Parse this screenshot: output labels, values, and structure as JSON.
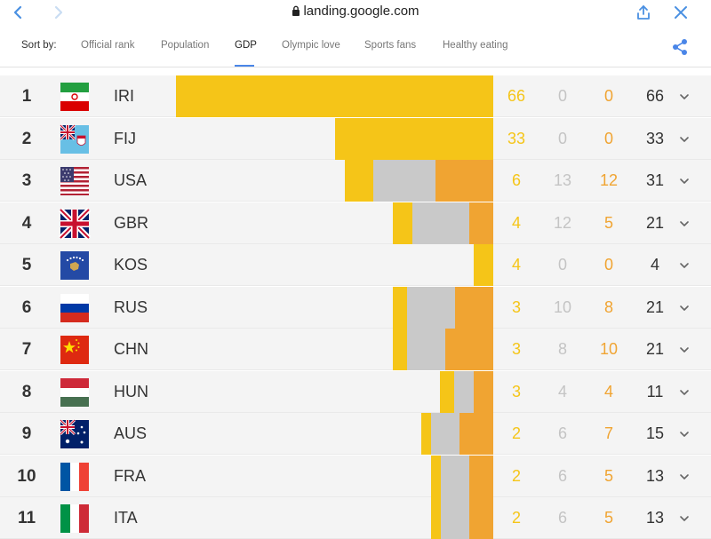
{
  "browser": {
    "url": "landing.google.com"
  },
  "sortbar": {
    "label": "Sort by:",
    "tabs": [
      "Official rank",
      "Population",
      "GDP",
      "Olympic love",
      "Sports fans",
      "Healthy eating"
    ],
    "active_tab": "GDP"
  },
  "colors": {
    "gold": "#f5c518",
    "silver": "#c9c9c9",
    "bronze": "#f0a432",
    "accent": "#4a86e8"
  },
  "rows": [
    {
      "rank": "1",
      "code": "IRI",
      "flag": "iran-flag",
      "gold": "66",
      "silver": "0",
      "bronze": "0",
      "total": "66",
      "bar": {
        "gold": 357,
        "silver": 0,
        "bronze": 0
      }
    },
    {
      "rank": "2",
      "code": "FIJ",
      "flag": "fiji-flag",
      "gold": "33",
      "silver": "0",
      "bronze": "0",
      "total": "33",
      "bar": {
        "gold": 178,
        "silver": 0,
        "bronze": 0
      }
    },
    {
      "rank": "3",
      "code": "USA",
      "flag": "usa-flag",
      "gold": "6",
      "silver": "13",
      "bronze": "12",
      "total": "31",
      "bar": {
        "gold": 32,
        "silver": 70,
        "bronze": 65
      }
    },
    {
      "rank": "4",
      "code": "GBR",
      "flag": "uk-flag",
      "gold": "4",
      "silver": "12",
      "bronze": "5",
      "total": "21",
      "bar": {
        "gold": 22,
        "silver": 64,
        "bronze": 27
      }
    },
    {
      "rank": "5",
      "code": "KOS",
      "flag": "kosovo-flag",
      "gold": "4",
      "silver": "0",
      "bronze": "0",
      "total": "4",
      "bar": {
        "gold": 22,
        "silver": 0,
        "bronze": 0
      }
    },
    {
      "rank": "6",
      "code": "RUS",
      "flag": "russia-flag",
      "gold": "3",
      "silver": "10",
      "bronze": "8",
      "total": "21",
      "bar": {
        "gold": 16,
        "silver": 54,
        "bronze": 43
      }
    },
    {
      "rank": "7",
      "code": "CHN",
      "flag": "china-flag",
      "gold": "3",
      "silver": "8",
      "bronze": "10",
      "total": "21",
      "bar": {
        "gold": 16,
        "silver": 43,
        "bronze": 54
      }
    },
    {
      "rank": "8",
      "code": "HUN",
      "flag": "hungary-flag",
      "gold": "3",
      "silver": "4",
      "bronze": "4",
      "total": "11",
      "bar": {
        "gold": 16,
        "silver": 22,
        "bronze": 22
      }
    },
    {
      "rank": "9",
      "code": "AUS",
      "flag": "australia-flag",
      "gold": "2",
      "silver": "6",
      "bronze": "7",
      "total": "15",
      "bar": {
        "gold": 11,
        "silver": 32,
        "bronze": 38
      }
    },
    {
      "rank": "10",
      "code": "FRA",
      "flag": "france-flag",
      "gold": "2",
      "silver": "6",
      "bronze": "5",
      "total": "13",
      "bar": {
        "gold": 11,
        "silver": 32,
        "bronze": 27
      }
    },
    {
      "rank": "11",
      "code": "ITA",
      "flag": "italy-flag",
      "gold": "2",
      "silver": "6",
      "bronze": "5",
      "total": "13",
      "bar": {
        "gold": 11,
        "silver": 32,
        "bronze": 27
      }
    }
  ]
}
